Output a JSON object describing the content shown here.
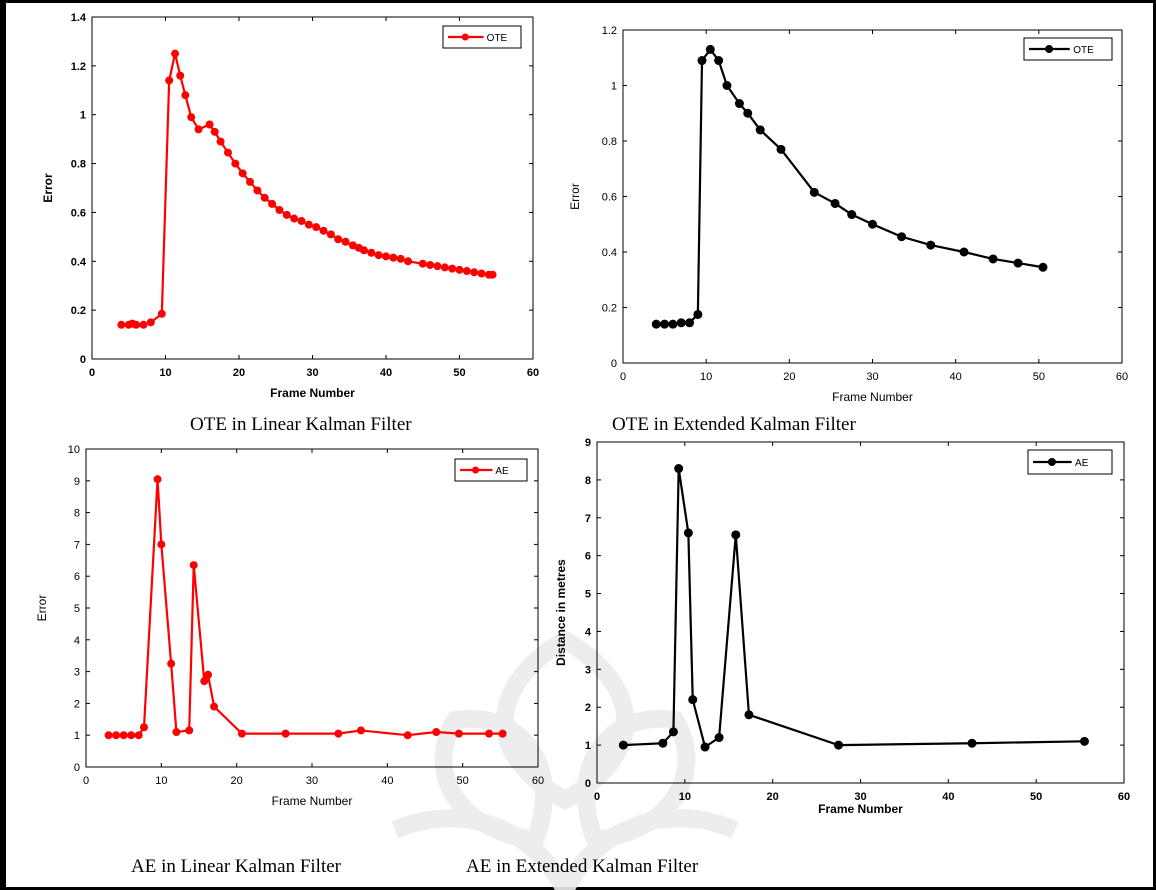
{
  "captions": {
    "top_left": "OTE in Linear Kalman Filter",
    "top_right": "OTE in Extended Kalman Filter",
    "bottom_left": "AE in Linear Kalman Filter",
    "bottom_right": "AE in Extended Kalman Filter"
  },
  "chart_data": [
    {
      "type": "line",
      "id": "ote-linear",
      "title": "",
      "xlabel": "Frame Number",
      "ylabel": "Error",
      "xlim": [
        0,
        60
      ],
      "ylim": [
        0,
        1.4
      ],
      "xticks": [
        "0",
        "10",
        "20",
        "30",
        "40",
        "50",
        "60"
      ],
      "yticks": [
        "0",
        "0.2",
        "0.4",
        "0.6",
        "0.8",
        "1",
        "1.2",
        "1.4"
      ],
      "legend": "top-right",
      "color": "#ff0000",
      "series": [
        {
          "name": "OTE",
          "x": [
            4,
            5,
            5.5,
            6,
            7,
            8,
            9.5,
            10.5,
            11.3,
            12,
            12.7,
            13.5,
            14.5,
            16,
            16.7,
            17.5,
            18.5,
            19.5,
            20.5,
            21.5,
            22.5,
            23.5,
            24.5,
            25.5,
            26.5,
            27.5,
            28.5,
            29.5,
            30.5,
            31.5,
            32.5,
            33.5,
            34.5,
            35.5,
            36.3,
            37,
            38,
            39,
            40,
            41,
            42,
            43,
            45,
            46,
            47,
            48,
            49,
            50,
            51,
            52,
            53,
            54,
            54.5
          ],
          "y": [
            0.14,
            0.14,
            0.145,
            0.14,
            0.14,
            0.15,
            0.185,
            1.14,
            1.25,
            1.16,
            1.08,
            0.99,
            0.94,
            0.96,
            0.93,
            0.89,
            0.845,
            0.8,
            0.76,
            0.725,
            0.69,
            0.66,
            0.635,
            0.61,
            0.59,
            0.575,
            0.565,
            0.55,
            0.54,
            0.525,
            0.51,
            0.49,
            0.48,
            0.465,
            0.455,
            0.445,
            0.435,
            0.425,
            0.42,
            0.415,
            0.41,
            0.4,
            0.39,
            0.385,
            0.38,
            0.375,
            0.37,
            0.365,
            0.36,
            0.355,
            0.35,
            0.345,
            0.345
          ]
        }
      ]
    },
    {
      "type": "line",
      "id": "ote-extended",
      "title": "",
      "xlabel": "Frame Number",
      "ylabel": "Error",
      "xlim": [
        0,
        60
      ],
      "ylim": [
        0,
        1.2
      ],
      "xticks": [
        "0",
        "10",
        "20",
        "30",
        "40",
        "50",
        "60"
      ],
      "yticks": [
        "0",
        "0.2",
        "0.4",
        "0.6",
        "0.8",
        "1",
        "1.2"
      ],
      "legend": "top-right",
      "color": "#000000",
      "series": [
        {
          "name": "OTE",
          "x": [
            4,
            5,
            6,
            7,
            8,
            9,
            9.5,
            10.5,
            11.5,
            12.5,
            14,
            15,
            16.5,
            19,
            23,
            25.5,
            27.5,
            30,
            33.5,
            37,
            41,
            44.5,
            47.5,
            50.5
          ],
          "y": [
            0.14,
            0.14,
            0.14,
            0.145,
            0.145,
            0.175,
            1.09,
            1.13,
            1.09,
            1.0,
            0.935,
            0.9,
            0.84,
            0.77,
            0.615,
            0.575,
            0.535,
            0.5,
            0.455,
            0.425,
            0.4,
            0.375,
            0.36,
            0.345
          ]
        }
      ]
    },
    {
      "type": "line",
      "id": "ae-linear",
      "title": "",
      "xlabel": "Frame Number",
      "ylabel": "Error",
      "xlim": [
        0,
        60
      ],
      "ylim": [
        0,
        10
      ],
      "xticks": [
        "0",
        "10",
        "20",
        "30",
        "40",
        "50",
        "60"
      ],
      "yticks": [
        "0",
        "1",
        "2",
        "3",
        "4",
        "5",
        "6",
        "7",
        "8",
        "9",
        "10"
      ],
      "legend": "top-right",
      "color": "#ff0000",
      "series": [
        {
          "name": "AE",
          "x": [
            3,
            4,
            5,
            6,
            7,
            7.7,
            9.5,
            10,
            11.3,
            12,
            13.7,
            14.3,
            15.7,
            16.2,
            17,
            20.7,
            26.5,
            33.5,
            36.5,
            42.7,
            46.5,
            49.5,
            53.5,
            55.3
          ],
          "y": [
            1.0,
            1.0,
            1.0,
            1.0,
            1.0,
            1.25,
            9.05,
            7.0,
            3.25,
            1.1,
            1.15,
            6.35,
            2.7,
            2.9,
            1.9,
            1.05,
            1.05,
            1.05,
            1.15,
            1.0,
            1.1,
            1.05,
            1.05,
            1.05
          ]
        }
      ]
    },
    {
      "type": "line",
      "id": "ae-extended",
      "title": "",
      "xlabel": "Frame Number",
      "ylabel": "Distance in metres",
      "xlim": [
        0,
        60
      ],
      "ylim": [
        0,
        9
      ],
      "xticks": [
        "0",
        "10",
        "20",
        "30",
        "40",
        "50",
        "60"
      ],
      "yticks": [
        "0",
        "1",
        "2",
        "3",
        "4",
        "5",
        "6",
        "7",
        "8",
        "9"
      ],
      "legend": "top-right",
      "color": "#000000",
      "series": [
        {
          "name": "AE",
          "x": [
            3,
            7.5,
            8.7,
            9.3,
            10.4,
            10.9,
            12.3,
            13.9,
            15.8,
            17.3,
            27.5,
            42.7,
            55.5
          ],
          "y": [
            1.0,
            1.05,
            1.35,
            8.3,
            6.6,
            2.2,
            0.95,
            1.2,
            6.55,
            1.8,
            1.0,
            1.05,
            1.1
          ]
        }
      ]
    }
  ]
}
